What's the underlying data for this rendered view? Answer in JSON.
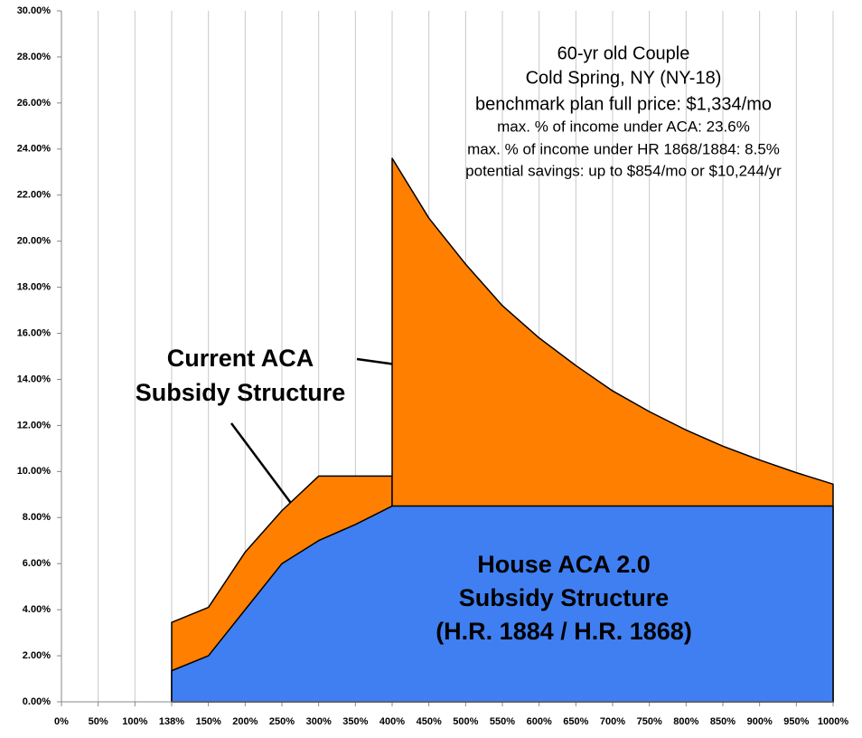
{
  "chart_data": {
    "type": "area",
    "categories": [
      "0%",
      "50%",
      "100%",
      "138%",
      "150%",
      "200%",
      "250%",
      "300%",
      "350%",
      "400%",
      "450%",
      "500%",
      "550%",
      "600%",
      "650%",
      "700%",
      "750%",
      "800%",
      "850%",
      "900%",
      "950%",
      "1000%"
    ],
    "series": [
      {
        "color": "#ff7f00",
        "values": [
          null,
          null,
          null,
          3.45,
          4.1,
          6.5,
          8.3,
          9.8,
          9.8,
          9.8,
          null,
          null,
          null,
          null,
          null,
          null,
          null,
          null,
          null,
          null,
          null,
          null
        ]
      },
      {
        "color": "#ff7f00",
        "values": [
          null,
          null,
          null,
          null,
          null,
          null,
          null,
          null,
          null,
          23.6,
          21.0,
          19.0,
          17.2,
          15.8,
          14.6,
          13.5,
          12.6,
          11.8,
          11.1,
          10.5,
          9.95,
          9.45
        ]
      },
      {
        "color": "#3f7ff2",
        "values": [
          null,
          null,
          null,
          1.35,
          2.0,
          4.0,
          6.0,
          7.0,
          7.7,
          8.5,
          8.5,
          8.5,
          8.5,
          8.5,
          8.5,
          8.5,
          8.5,
          8.5,
          8.5,
          8.5,
          8.5,
          8.5
        ]
      }
    ],
    "ylim": [
      0,
      30
    ],
    "yticks": [
      {
        "value": 0,
        "label": "0.00%"
      },
      {
        "value": 2,
        "label": "2.00%"
      },
      {
        "value": 4,
        "label": "4.00%"
      },
      {
        "value": 6,
        "label": "6.00%"
      },
      {
        "value": 8,
        "label": "8.00%"
      },
      {
        "value": 10,
        "label": "10.00%"
      },
      {
        "value": 12,
        "label": "12.00%"
      },
      {
        "value": 14,
        "label": "14.00%"
      },
      {
        "value": 16,
        "label": "16.00%"
      },
      {
        "value": 18,
        "label": "18.00%"
      },
      {
        "value": 20,
        "label": "20.00%"
      },
      {
        "value": 22,
        "label": "22.00%"
      },
      {
        "value": 24,
        "label": "24.00%"
      },
      {
        "value": 26,
        "label": "26.00%"
      },
      {
        "value": 28,
        "label": "28.00%"
      },
      {
        "value": 30,
        "label": "30.00%"
      }
    ],
    "grid": true,
    "info_text": [
      "60-yr old Couple",
      "Cold Spring, NY (NY-18)",
      "benchmark plan full price: $1,334/mo",
      "max. % of income under ACA: 23.6%",
      "max. % of income under HR 1868/1884: 8.5%",
      "potential savings: up to $854/mo or $10,244/yr"
    ],
    "aca_label": [
      "Current ACA",
      "Subsidy Structure"
    ],
    "house_label": [
      "House ACA 2.0",
      "Subsidy Structure",
      "(H.R. 1884 / H.R. 1868)"
    ]
  }
}
